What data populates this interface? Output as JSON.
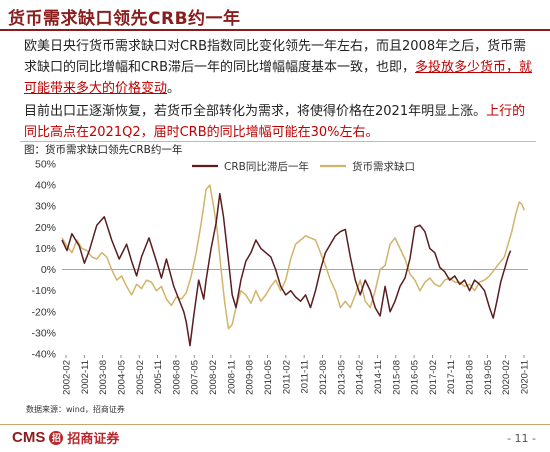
{
  "slide": {
    "title": "货币需求缺口领先CRB约一年",
    "para1_a": "欧美日央行货币需求缺口对CRB指数同比变化领先一年左右，而且2008年之后，货币需求缺口的同比增幅和CRB滞后一年的同比增幅幅度基本一致，也即，",
    "para1_b": "多投放多少货币，就可能带来多大的价格变动",
    "para1_c": "。",
    "para2_a": "目前出口正逐渐恢复，若货币全部转化为需求，将使得价格在2021年明显上涨。",
    "para2_b": "上行的同比高点在2021Q2，届时CRB的同比增幅可能在30%左右。",
    "chart_title": "图：货币需求缺口领先CRB约一年",
    "source": "数据来源：wind，招商证券",
    "logo_text": "CMS",
    "logo_mark": "招",
    "logo_cn": "招商证券",
    "page_number": "- 11 -"
  },
  "colors": {
    "brand": "#8a1c1c",
    "crb": "#5a1d20",
    "money_gap": "#d1b46a",
    "highlight": "#c00000"
  },
  "chart_data": {
    "type": "line",
    "title": "图：货币需求缺口领先CRB约一年",
    "xlabel": "",
    "ylabel": "",
    "ylim": [
      -40,
      50
    ],
    "yticks": [
      "50%",
      "40%",
      "30%",
      "20%",
      "10%",
      "0%",
      "-10%",
      "-20%",
      "-30%",
      "-40%"
    ],
    "xticks": [
      "2002-02",
      "2002-11",
      "2003-08",
      "2004-05",
      "2005-02",
      "2005-11",
      "2006-08",
      "2007-05",
      "2008-02",
      "2008-11",
      "2009-08",
      "2010-05",
      "2011-02",
      "2011-11",
      "2012-08",
      "2013-05",
      "2014-02",
      "2014-11",
      "2015-08",
      "2016-05",
      "2017-02",
      "2017-11",
      "2018-08",
      "2019-05",
      "2020-02",
      "2020-11"
    ],
    "legend_position": "top",
    "series": [
      {
        "name": "CRB同比滞后一年",
        "color": "#5a1d20",
        "points": [
          [
            2002.1,
            14
          ],
          [
            2002.3,
            9
          ],
          [
            2002.5,
            17
          ],
          [
            2002.8,
            11
          ],
          [
            2003.0,
            3
          ],
          [
            2003.2,
            9
          ],
          [
            2003.5,
            21
          ],
          [
            2003.8,
            25
          ],
          [
            2004.1,
            14
          ],
          [
            2004.4,
            5
          ],
          [
            2004.7,
            12
          ],
          [
            2004.9,
            4
          ],
          [
            2005.1,
            -3
          ],
          [
            2005.3,
            6
          ],
          [
            2005.6,
            15
          ],
          [
            2005.9,
            4
          ],
          [
            2006.1,
            -4
          ],
          [
            2006.3,
            5
          ],
          [
            2006.6,
            -8
          ],
          [
            2006.8,
            -14
          ],
          [
            2007.0,
            -20
          ],
          [
            2007.1,
            -25
          ],
          [
            2007.25,
            -36
          ],
          [
            2007.4,
            -22
          ],
          [
            2007.6,
            -5
          ],
          [
            2007.8,
            -14
          ],
          [
            2007.9,
            -5
          ],
          [
            2008.1,
            10
          ],
          [
            2008.3,
            22
          ],
          [
            2008.45,
            36
          ],
          [
            2008.6,
            25
          ],
          [
            2008.8,
            4
          ],
          [
            2008.95,
            -12
          ],
          [
            2009.1,
            -18
          ],
          [
            2009.3,
            -5
          ],
          [
            2009.5,
            4
          ],
          [
            2009.7,
            8
          ],
          [
            2009.9,
            14
          ],
          [
            2010.1,
            10
          ],
          [
            2010.3,
            8
          ],
          [
            2010.5,
            6
          ],
          [
            2010.7,
            0
          ],
          [
            2010.9,
            -8
          ],
          [
            2011.1,
            -12
          ],
          [
            2011.3,
            -10
          ],
          [
            2011.5,
            -13
          ],
          [
            2011.7,
            -15
          ],
          [
            2011.9,
            -12
          ],
          [
            2012.1,
            -18
          ],
          [
            2012.3,
            -10
          ],
          [
            2012.5,
            0
          ],
          [
            2012.7,
            8
          ],
          [
            2012.9,
            12
          ],
          [
            2013.1,
            16
          ],
          [
            2013.3,
            18
          ],
          [
            2013.5,
            19
          ],
          [
            2013.7,
            6
          ],
          [
            2013.9,
            -5
          ],
          [
            2014.1,
            -12
          ],
          [
            2014.3,
            -5
          ],
          [
            2014.5,
            -10
          ],
          [
            2014.7,
            -18
          ],
          [
            2014.9,
            -22
          ],
          [
            2015.1,
            -8
          ],
          [
            2015.3,
            -20
          ],
          [
            2015.5,
            -15
          ],
          [
            2015.7,
            -8
          ],
          [
            2015.9,
            -4
          ],
          [
            2016.1,
            5
          ],
          [
            2016.3,
            20
          ],
          [
            2016.5,
            21
          ],
          [
            2016.7,
            18
          ],
          [
            2016.9,
            10
          ],
          [
            2017.1,
            8
          ],
          [
            2017.3,
            1
          ],
          [
            2017.5,
            -1
          ],
          [
            2017.7,
            -5
          ],
          [
            2017.9,
            -3
          ],
          [
            2018.1,
            -7
          ],
          [
            2018.3,
            -5
          ],
          [
            2018.5,
            -10
          ],
          [
            2018.7,
            -5
          ],
          [
            2018.9,
            -7
          ],
          [
            2019.1,
            -10
          ],
          [
            2019.3,
            -18
          ],
          [
            2019.45,
            -23
          ],
          [
            2019.6,
            -15
          ],
          [
            2019.75,
            -6
          ],
          [
            2019.9,
            0
          ],
          [
            2020.05,
            6
          ],
          [
            2020.15,
            9
          ]
        ]
      },
      {
        "name": "货币需求缺口",
        "color": "#d1b46a",
        "points": [
          [
            2002.1,
            15
          ],
          [
            2002.3,
            11
          ],
          [
            2002.5,
            8
          ],
          [
            2002.7,
            14
          ],
          [
            2002.9,
            10
          ],
          [
            2003.1,
            9
          ],
          [
            2003.3,
            6
          ],
          [
            2003.5,
            5
          ],
          [
            2003.7,
            8
          ],
          [
            2003.9,
            6
          ],
          [
            2004.1,
            0
          ],
          [
            2004.3,
            -5
          ],
          [
            2004.5,
            -3
          ],
          [
            2004.7,
            -8
          ],
          [
            2004.9,
            -12
          ],
          [
            2005.1,
            -7
          ],
          [
            2005.3,
            -9
          ],
          [
            2005.5,
            -5
          ],
          [
            2005.7,
            -6
          ],
          [
            2005.9,
            -10
          ],
          [
            2006.1,
            -8
          ],
          [
            2006.3,
            -14
          ],
          [
            2006.5,
            -17
          ],
          [
            2006.7,
            -13
          ],
          [
            2006.9,
            -14
          ],
          [
            2007.1,
            -11
          ],
          [
            2007.3,
            -3
          ],
          [
            2007.5,
            8
          ],
          [
            2007.7,
            22
          ],
          [
            2007.9,
            38
          ],
          [
            2008.05,
            40
          ],
          [
            2008.2,
            30
          ],
          [
            2008.35,
            18
          ],
          [
            2008.5,
            0
          ],
          [
            2008.65,
            -16
          ],
          [
            2008.8,
            -28
          ],
          [
            2008.95,
            -26
          ],
          [
            2009.1,
            -18
          ],
          [
            2009.3,
            -10
          ],
          [
            2009.5,
            -12
          ],
          [
            2009.7,
            -16
          ],
          [
            2009.9,
            -10
          ],
          [
            2010.1,
            -15
          ],
          [
            2010.3,
            -12
          ],
          [
            2010.5,
            -8
          ],
          [
            2010.7,
            -5
          ],
          [
            2010.9,
            -10
          ],
          [
            2011.1,
            -5
          ],
          [
            2011.3,
            5
          ],
          [
            2011.5,
            12
          ],
          [
            2011.7,
            14
          ],
          [
            2011.9,
            16
          ],
          [
            2012.1,
            15
          ],
          [
            2012.3,
            14
          ],
          [
            2012.5,
            8
          ],
          [
            2012.7,
            2
          ],
          [
            2012.9,
            -5
          ],
          [
            2013.1,
            -10
          ],
          [
            2013.3,
            -18
          ],
          [
            2013.5,
            -15
          ],
          [
            2013.7,
            -18
          ],
          [
            2013.9,
            -12
          ],
          [
            2014.1,
            -5
          ],
          [
            2014.3,
            -15
          ],
          [
            2014.5,
            -18
          ],
          [
            2014.7,
            -10
          ],
          [
            2014.9,
            0
          ],
          [
            2015.1,
            2
          ],
          [
            2015.3,
            12
          ],
          [
            2015.5,
            15
          ],
          [
            2015.7,
            10
          ],
          [
            2015.9,
            5
          ],
          [
            2016.1,
            -2
          ],
          [
            2016.3,
            -5
          ],
          [
            2016.5,
            -10
          ],
          [
            2016.7,
            -6
          ],
          [
            2016.9,
            -4
          ],
          [
            2017.1,
            -7
          ],
          [
            2017.3,
            -8
          ],
          [
            2017.5,
            -5
          ],
          [
            2017.7,
            -4
          ],
          [
            2017.9,
            -6
          ],
          [
            2018.1,
            -6
          ],
          [
            2018.3,
            -8
          ],
          [
            2018.5,
            -7
          ],
          [
            2018.7,
            -10
          ],
          [
            2018.9,
            -6
          ],
          [
            2019.1,
            -5
          ],
          [
            2019.3,
            -3
          ],
          [
            2019.5,
            0
          ],
          [
            2019.7,
            3
          ],
          [
            2019.9,
            6
          ],
          [
            2020.05,
            12
          ],
          [
            2020.2,
            18
          ],
          [
            2020.35,
            26
          ],
          [
            2020.5,
            32
          ],
          [
            2020.6,
            31
          ],
          [
            2020.7,
            28
          ]
        ]
      }
    ]
  }
}
